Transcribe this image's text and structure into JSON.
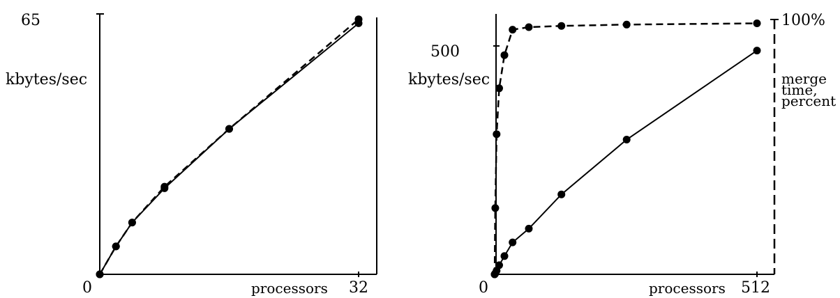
{
  "chart_data": [
    {
      "type": "line",
      "title": "",
      "xlabel": "processors",
      "ylabel": "kbytes/sec",
      "xlim": [
        0,
        32
      ],
      "ylim": [
        0,
        65
      ],
      "x_tick_labels": [
        "0",
        "32"
      ],
      "y_tick_labels": [
        "65"
      ],
      "grid": false,
      "series": [
        {
          "style": "solid",
          "x": [
            0,
            2,
            4,
            8,
            16,
            32
          ],
          "y": [
            0,
            7,
            13,
            21.6,
            36.5,
            63
          ]
        },
        {
          "style": "dashed",
          "x": [
            0,
            2,
            4,
            8,
            16,
            32
          ],
          "y": [
            0,
            7,
            13,
            22,
            36.5,
            64
          ]
        }
      ]
    },
    {
      "type": "line",
      "title": "",
      "xlabel": "processors",
      "ylabel": "kbytes/sec",
      "y2label": "merge time, percent",
      "xlim": [
        0,
        512
      ],
      "ylim": [
        0,
        500
      ],
      "y2lim": [
        0,
        100
      ],
      "x_tick_labels": [
        "0",
        "512"
      ],
      "y_tick_labels": [
        "500"
      ],
      "y2_tick_labels": [
        "100%"
      ],
      "grid": false,
      "series": [
        {
          "style": "solid",
          "axis": "left",
          "x": [
            1,
            2,
            4,
            8,
            16,
            32,
            64,
            128,
            256,
            512
          ],
          "y": [
            0,
            2,
            8,
            20,
            40,
            70,
            100,
            175,
            295,
            490
          ]
        },
        {
          "style": "dashed",
          "axis": "right",
          "x": [
            1,
            2,
            4,
            8,
            16,
            32,
            64,
            128,
            256,
            512
          ],
          "y": [
            0,
            26,
            55,
            73,
            86,
            96,
            97,
            97.5,
            98,
            98.5
          ]
        }
      ]
    }
  ]
}
